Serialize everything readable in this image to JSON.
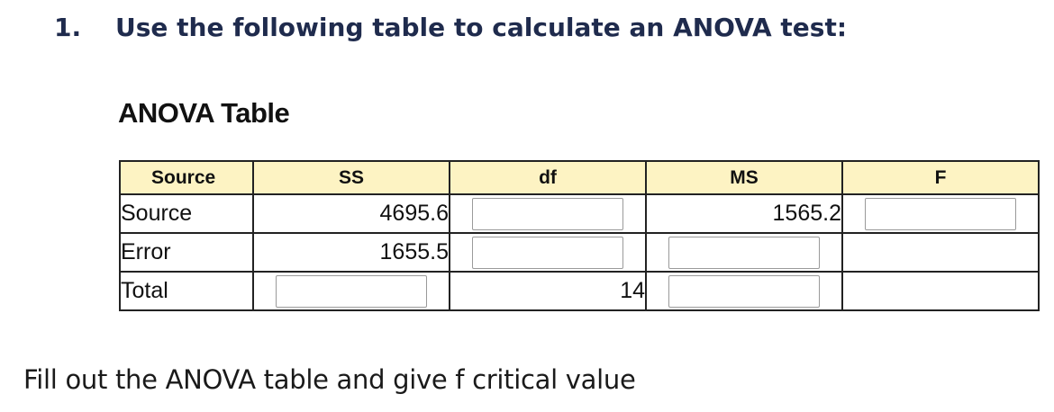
{
  "question": {
    "number": "1.",
    "text": "Use the following table to calculate an ANOVA test:"
  },
  "table": {
    "title": "ANOVA Table",
    "headers": [
      "Source",
      "SS",
      "df",
      "MS",
      "F"
    ],
    "rows": [
      {
        "label": "Source",
        "ss": "4695.6",
        "df": "",
        "ms": "1565.2",
        "f": ""
      },
      {
        "label": "Error",
        "ss": "1655.5",
        "df": "",
        "ms": "",
        "f": ""
      },
      {
        "label": "Total",
        "ss": "",
        "df": "14",
        "ms": "",
        "f": ""
      }
    ]
  },
  "instruction": "Fill out the ANOVA table and give f critical value"
}
